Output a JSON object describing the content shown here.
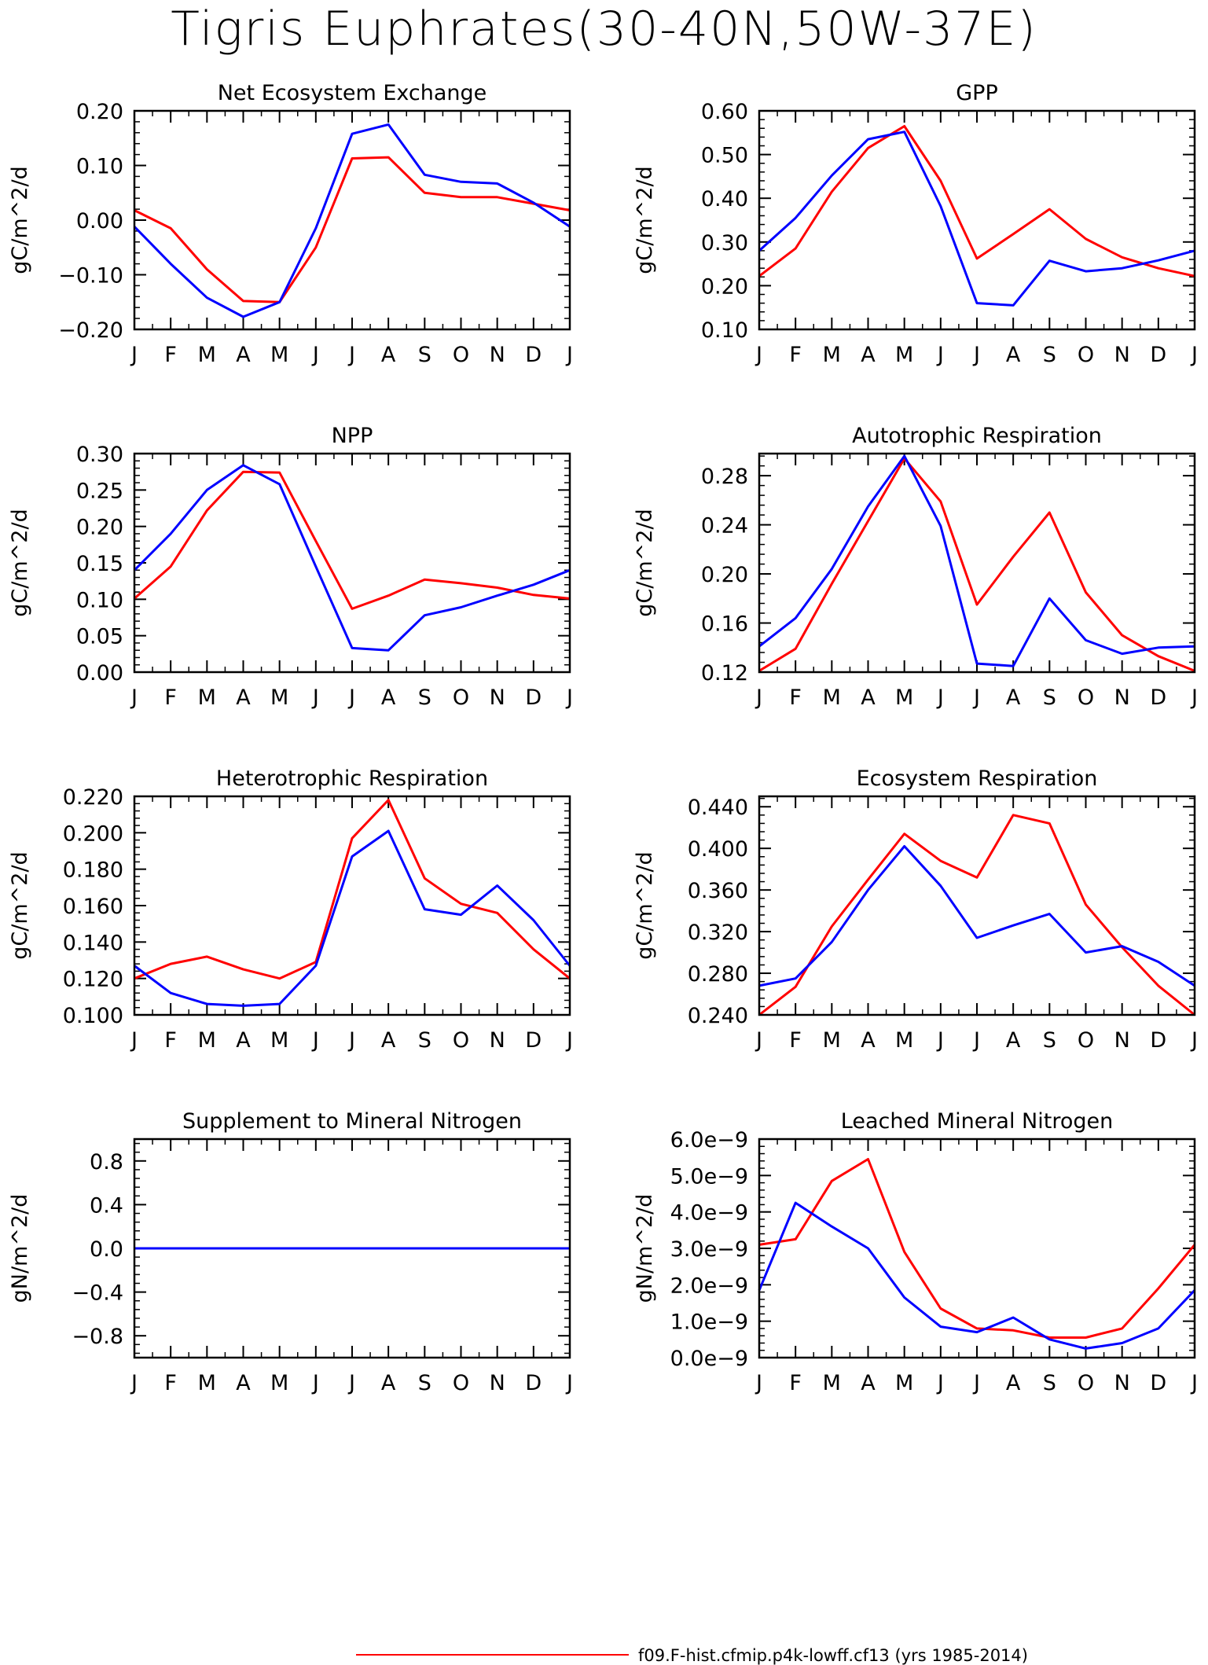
{
  "title": "Tigris Euphrates(30-40N,50W-37E)",
  "legend_entries": [
    {
      "label": "f09.F-hist.cfmip.p4k-lowff.cf13 (yrs 1985-2014)",
      "color": "#ff0000"
    }
  ],
  "chart_data": [
    {
      "type": "line",
      "title": "Net Ecosystem Exchange",
      "ylabel": "gC/m^2/d",
      "categories": [
        "J",
        "F",
        "M",
        "A",
        "M",
        "J",
        "J",
        "A",
        "S",
        "O",
        "N",
        "D",
        "J"
      ],
      "yticks": [
        -0.2,
        -0.1,
        0.0,
        0.1,
        0.2
      ],
      "ytick_labels": [
        "−0.20",
        "−0.10",
        "0.00",
        "0.10",
        "0.20"
      ],
      "ylim": [
        -0.2,
        0.2
      ],
      "series": [
        {
          "color": "#ff0000",
          "values": [
            0.018,
            -0.015,
            -0.09,
            -0.148,
            -0.15,
            -0.05,
            0.113,
            0.115,
            0.05,
            0.042,
            0.042,
            0.03,
            0.018
          ]
        },
        {
          "color": "#0000ff",
          "values": [
            -0.012,
            -0.08,
            -0.142,
            -0.177,
            -0.15,
            -0.015,
            0.158,
            0.175,
            0.083,
            0.07,
            0.067,
            0.032,
            -0.012
          ]
        }
      ]
    },
    {
      "type": "line",
      "title": "GPP",
      "ylabel": "gC/m^2/d",
      "categories": [
        "J",
        "F",
        "M",
        "A",
        "M",
        "J",
        "J",
        "A",
        "S",
        "O",
        "N",
        "D",
        "J"
      ],
      "yticks": [
        0.1,
        0.2,
        0.3,
        0.4,
        0.5,
        0.6
      ],
      "ytick_labels": [
        "0.10",
        "0.20",
        "0.30",
        "0.40",
        "0.50",
        "0.60"
      ],
      "ylim": [
        0.1,
        0.6
      ],
      "series": [
        {
          "color": "#ff0000",
          "values": [
            0.222,
            0.285,
            0.415,
            0.515,
            0.565,
            0.44,
            0.262,
            0.318,
            0.375,
            0.307,
            0.265,
            0.24,
            0.222
          ]
        },
        {
          "color": "#0000ff",
          "values": [
            0.28,
            0.355,
            0.452,
            0.535,
            0.552,
            0.382,
            0.16,
            0.155,
            0.257,
            0.233,
            0.24,
            0.258,
            0.28
          ]
        }
      ]
    },
    {
      "type": "line",
      "title": "NPP",
      "ylabel": "gC/m^2/d",
      "categories": [
        "J",
        "F",
        "M",
        "A",
        "M",
        "J",
        "J",
        "A",
        "S",
        "O",
        "N",
        "D",
        "J"
      ],
      "yticks": [
        0.0,
        0.05,
        0.1,
        0.15,
        0.2,
        0.25,
        0.3
      ],
      "ytick_labels": [
        "0.00",
        "0.05",
        "0.10",
        "0.15",
        "0.20",
        "0.25",
        "0.30"
      ],
      "ylim": [
        0.0,
        0.3
      ],
      "series": [
        {
          "color": "#ff0000",
          "values": [
            0.101,
            0.145,
            0.222,
            0.275,
            0.274,
            0.18,
            0.087,
            0.105,
            0.127,
            0.122,
            0.116,
            0.106,
            0.101
          ]
        },
        {
          "color": "#0000ff",
          "values": [
            0.14,
            0.19,
            0.25,
            0.284,
            0.258,
            0.145,
            0.033,
            0.03,
            0.078,
            0.089,
            0.105,
            0.12,
            0.14
          ]
        }
      ]
    },
    {
      "type": "line",
      "title": "Autotrophic Respiration",
      "ylabel": "gC/m^2/d",
      "categories": [
        "J",
        "F",
        "M",
        "A",
        "M",
        "J",
        "J",
        "A",
        "S",
        "O",
        "N",
        "D",
        "J"
      ],
      "yticks": [
        0.12,
        0.16,
        0.2,
        0.24,
        0.28
      ],
      "ytick_labels": [
        "0.12",
        "0.16",
        "0.20",
        "0.24",
        "0.28"
      ],
      "ylim": [
        0.12,
        0.298
      ],
      "series": [
        {
          "color": "#ff0000",
          "values": [
            0.121,
            0.139,
            0.192,
            0.243,
            0.294,
            0.259,
            0.175,
            0.214,
            0.25,
            0.185,
            0.15,
            0.133,
            0.121
          ]
        },
        {
          "color": "#0000ff",
          "values": [
            0.141,
            0.164,
            0.204,
            0.255,
            0.296,
            0.239,
            0.127,
            0.125,
            0.18,
            0.146,
            0.135,
            0.14,
            0.141
          ]
        }
      ]
    },
    {
      "type": "line",
      "title": "Heterotrophic Respiration",
      "ylabel": "gC/m^2/d",
      "categories": [
        "J",
        "F",
        "M",
        "A",
        "M",
        "J",
        "J",
        "A",
        "S",
        "O",
        "N",
        "D",
        "J"
      ],
      "yticks": [
        0.1,
        0.12,
        0.14,
        0.16,
        0.18,
        0.2,
        0.22
      ],
      "ytick_labels": [
        "0.100",
        "0.120",
        "0.140",
        "0.160",
        "0.180",
        "0.200",
        "0.220"
      ],
      "ylim": [
        0.1,
        0.22
      ],
      "series": [
        {
          "color": "#ff0000",
          "values": [
            0.12,
            0.128,
            0.132,
            0.125,
            0.12,
            0.129,
            0.197,
            0.218,
            0.175,
            0.161,
            0.156,
            0.136,
            0.12
          ]
        },
        {
          "color": "#0000ff",
          "values": [
            0.127,
            0.112,
            0.106,
            0.105,
            0.106,
            0.127,
            0.187,
            0.201,
            0.158,
            0.155,
            0.171,
            0.152,
            0.127
          ]
        }
      ]
    },
    {
      "type": "line",
      "title": "Ecosystem Respiration",
      "ylabel": "gC/m^2/d",
      "categories": [
        "J",
        "F",
        "M",
        "A",
        "M",
        "J",
        "J",
        "A",
        "S",
        "O",
        "N",
        "D",
        "J"
      ],
      "yticks": [
        0.24,
        0.28,
        0.32,
        0.36,
        0.4,
        0.44
      ],
      "ytick_labels": [
        "0.240",
        "0.280",
        "0.320",
        "0.360",
        "0.400",
        "0.440"
      ],
      "ylim": [
        0.24,
        0.45
      ],
      "series": [
        {
          "color": "#ff0000",
          "values": [
            0.24,
            0.267,
            0.325,
            0.37,
            0.414,
            0.388,
            0.372,
            0.432,
            0.424,
            0.346,
            0.305,
            0.268,
            0.24
          ]
        },
        {
          "color": "#0000ff",
          "values": [
            0.268,
            0.275,
            0.31,
            0.36,
            0.402,
            0.364,
            0.314,
            0.326,
            0.337,
            0.3,
            0.306,
            0.291,
            0.268
          ]
        }
      ]
    },
    {
      "type": "line",
      "title": "Supplement to Mineral Nitrogen",
      "ylabel": "gN/m^2/d",
      "categories": [
        "J",
        "F",
        "M",
        "A",
        "M",
        "J",
        "J",
        "A",
        "S",
        "O",
        "N",
        "D",
        "J"
      ],
      "yticks": [
        -0.8,
        -0.4,
        0.0,
        0.4,
        0.8
      ],
      "ytick_labels": [
        "−0.8",
        "−0.4",
        "0.0",
        "0.4",
        "0.8"
      ],
      "ylim": [
        -1.0,
        1.0
      ],
      "series": [
        {
          "color": "#ff0000",
          "values": [
            0,
            0,
            0,
            0,
            0,
            0,
            0,
            0,
            0,
            0,
            0,
            0,
            0
          ]
        },
        {
          "color": "#0000ff",
          "values": [
            0,
            0,
            0,
            0,
            0,
            0,
            0,
            0,
            0,
            0,
            0,
            0,
            0
          ]
        }
      ]
    },
    {
      "type": "line",
      "title": "Leached Mineral Nitrogen",
      "ylabel": "gN/m^2/d",
      "categories": [
        "J",
        "F",
        "M",
        "A",
        "M",
        "J",
        "J",
        "A",
        "S",
        "O",
        "N",
        "D",
        "J"
      ],
      "yticks": [
        0,
        1e-09,
        2e-09,
        3e-09,
        4e-09,
        5e-09,
        6e-09
      ],
      "ytick_labels": [
        "0.0e−9",
        "1.0e−9",
        "2.0e−9",
        "3.0e−9",
        "4.0e−9",
        "5.0e−9",
        "6.0e−9"
      ],
      "ylim": [
        0,
        6e-09
      ],
      "series": [
        {
          "color": "#ff0000",
          "values": [
            3.1e-09,
            3.25e-09,
            4.85e-09,
            5.45e-09,
            2.9e-09,
            1.35e-09,
            8e-10,
            7.5e-10,
            5.5e-10,
            5.5e-10,
            8e-10,
            1.9e-09,
            3.1e-09
          ]
        },
        {
          "color": "#0000ff",
          "values": [
            1.85e-09,
            4.25e-09,
            3.6e-09,
            3e-09,
            1.65e-09,
            8.5e-10,
            7e-10,
            1.1e-09,
            5e-10,
            2.5e-10,
            4e-10,
            8e-10,
            1.85e-09
          ]
        }
      ]
    }
  ]
}
